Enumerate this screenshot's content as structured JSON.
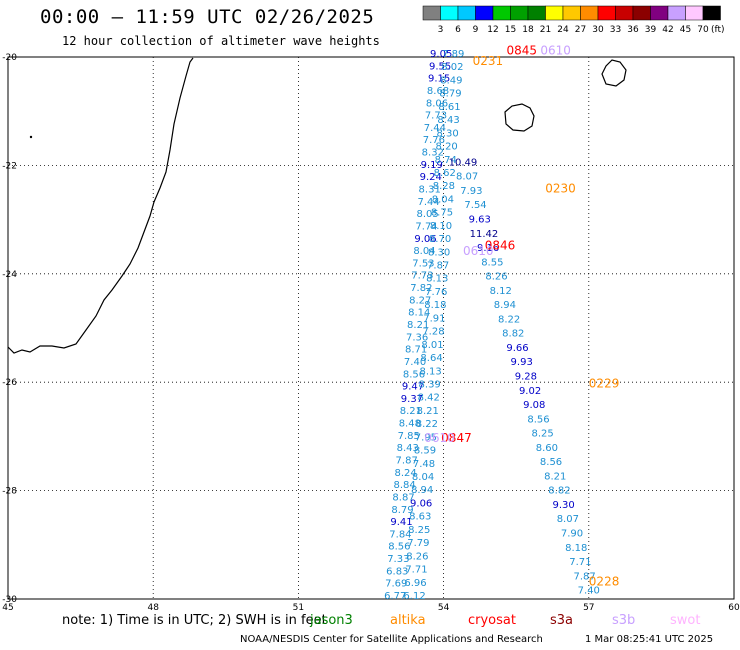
{
  "title": "00:00 — 11:59 UTC 02/26/2025",
  "subtitle": "12 hour collection of altimeter wave heights",
  "colorbar": {
    "colors": [
      "#808080",
      "#00ffff",
      "#00c8ff",
      "#0000ff",
      "#00c800",
      "#00a000",
      "#008000",
      "#ffff00",
      "#ffc800",
      "#ff8c00",
      "#ff0000",
      "#c80000",
      "#8b0000",
      "#800080",
      "#c8a0ff",
      "#ffc8ff",
      "#000000"
    ],
    "labels": [
      "3",
      "6",
      "9",
      "12",
      "15",
      "18",
      "21",
      "24",
      "27",
      "30",
      "33",
      "36",
      "39",
      "42",
      "45",
      "70",
      "(ft)"
    ]
  },
  "map": {
    "lon_range": [
      45,
      60
    ],
    "lat_range": [
      -30,
      -20
    ],
    "x_ticks": [
      "45",
      "48",
      "51",
      "54",
      "57",
      "60"
    ],
    "y_ticks": [
      "-20",
      "-22",
      "-24",
      "-26",
      "-28",
      "-30"
    ]
  },
  "chart_data": {
    "type": "scatter",
    "xlabel": "",
    "ylabel": "",
    "xlim": [
      45,
      60
    ],
    "ylim": [
      -30,
      -20
    ],
    "tracks": [
      {
        "name": "track-west",
        "color": "#1e90d2",
        "start": [
          53.0,
          -30.0
        ],
        "end": [
          53.95,
          -20.0
        ],
        "values": [
          "6.77",
          "7.69",
          "6.83",
          "7.33",
          "8.56",
          "7.84",
          "9.41",
          "8.79",
          "8.87",
          "8.84",
          "8.24",
          "7.87",
          "8.43",
          "7.85",
          "8.48",
          "8.21",
          "9.37",
          "9.47",
          "8.56",
          "7.40",
          "8.71",
          "7.36",
          "8.21",
          "8.14",
          "8.27",
          "7.82",
          "7.73",
          "7.53",
          "8.04",
          "9.06",
          "7.74",
          "8.05",
          "7.44",
          "8.31",
          "9.24",
          "9.19",
          "8.32",
          "7.76",
          "7.44",
          "7.73",
          "8.06",
          "8.68",
          "9.15",
          "9.55",
          "9.05"
        ]
      },
      {
        "name": "track-mid",
        "color": "#1e90d2",
        "start": [
          53.4,
          -30.0
        ],
        "end": [
          54.2,
          -20.0
        ],
        "values": [
          "6.12",
          "6.96",
          "7.71",
          "8.26",
          "7.79",
          "8.25",
          "8.63",
          "9.06",
          "8.94",
          "8.04",
          "7.48",
          "8.59",
          "7.95",
          "8.22",
          "8.21",
          "8.42",
          "8.39",
          "8.13",
          "8.64",
          "8.01",
          "7.28",
          "7.91",
          "8.18",
          "7.76",
          "8.13",
          "7.87",
          "8.30",
          "8.70",
          "8.10",
          "8.75",
          "8.04",
          "8.28",
          "8.62",
          "8.74",
          "8.20",
          "8.30",
          "8.43",
          "8.61",
          "8.79",
          "8.49",
          "8.02",
          "7.89"
        ]
      },
      {
        "name": "track-east",
        "color": "#1e90d2",
        "start": [
          57.0,
          -29.9
        ],
        "end": [
          54.4,
          -22.0
        ],
        "values": [
          "7.40",
          "7.87",
          "7.71",
          "8.18",
          "7.90",
          "8.07",
          "9.30",
          "8.82",
          "8.21",
          "8.56",
          "8.60",
          "8.25",
          "8.56",
          "9.08",
          "9.02",
          "9.28",
          "9.93",
          "9.66",
          "8.82",
          "8.22",
          "8.94",
          "8.12",
          "8.26",
          "8.55",
          "9.16",
          "11.42",
          "9.63",
          "7.54",
          "7.93",
          "8.07",
          "10.49"
        ]
      }
    ],
    "time_labels": [
      {
        "text": "0228",
        "lon": 57.0,
        "lat": -29.75,
        "color": "#ff8c00"
      },
      {
        "text": "0229",
        "lon": 57.0,
        "lat": -26.1,
        "color": "#ff8c00"
      },
      {
        "text": "0230",
        "lon": 56.1,
        "lat": -22.5,
        "color": "#ff8c00"
      },
      {
        "text": "0231",
        "lon": 54.6,
        "lat": -20.15,
        "color": "#ff8c00"
      },
      {
        "text": "0847",
        "lon": 53.95,
        "lat": -27.1,
        "color": "#ff0000"
      },
      {
        "text": "0846",
        "lon": 54.85,
        "lat": -23.55,
        "color": "#ff0000"
      },
      {
        "text": "0845",
        "lon": 55.3,
        "lat": -19.95,
        "color": "#ff0000"
      },
      {
        "text": "0610",
        "lon": 53.6,
        "lat": -27.1,
        "color": "#c8a0ff"
      },
      {
        "text": "0610",
        "lon": 54.4,
        "lat": -23.65,
        "color": "#c8a0ff"
      },
      {
        "text": "0610",
        "lon": 56.0,
        "lat": -19.95,
        "color": "#c8a0ff"
      }
    ]
  },
  "footer": {
    "note": "note:  1) Time is in UTC;  2) SWH is in feet",
    "satellites": [
      {
        "name": "jason3",
        "color": "#008000"
      },
      {
        "name": "altika",
        "color": "#ff8c00"
      },
      {
        "name": "cryosat",
        "color": "#ff0000"
      },
      {
        "name": "s3a",
        "color": "#8b0000"
      },
      {
        "name": "s3b",
        "color": "#c8a0ff"
      },
      {
        "name": "swot",
        "color": "#ffb4ff"
      }
    ],
    "credit": "NOAA/NESDIS Center for Satellite Applications and Research",
    "timestamp": "1 Mar 08:25:41 UTC 2025"
  }
}
